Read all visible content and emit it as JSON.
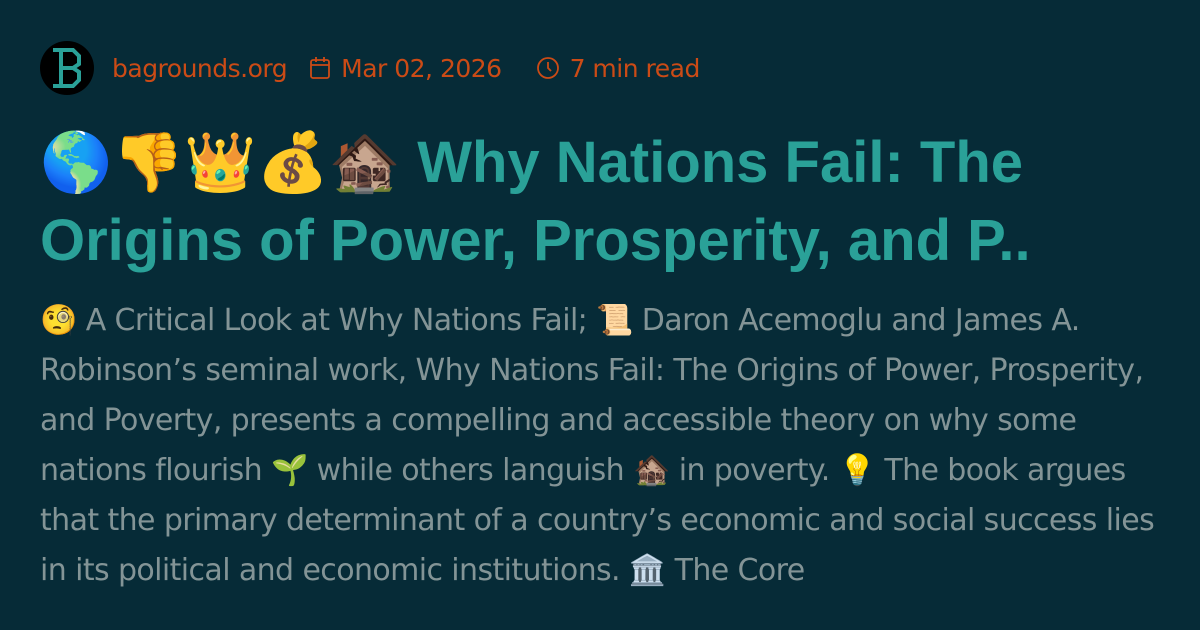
{
  "header": {
    "logo_letter": "B",
    "site": "bagrounds.org",
    "date": "Mar 02, 2026",
    "read_time": "7 min read",
    "icons": [
      "calendar-icon",
      "clock-icon"
    ]
  },
  "title": "🌎👎👑💰🏚️ Why Nations Fail: The Origins of Power, Prosperity, and P..",
  "description": "🧐 A Critical Look at Why Nations Fail; 📜 Daron Acemoglu and James A. Robinson’s seminal work, Why Nations Fail: The Origins of Power, Prosperity, and Poverty, presents a compelling and accessible theory on why some nations flourish 🌱 while others languish 🏚️ in poverty. 💡 The book argues that the primary determinant of a country’s economic and social success lies in its political and economic institutions. 🏛️ The Core",
  "colors": {
    "background": "#062b37",
    "title": "#2aa198",
    "meta": "#cb4b16",
    "text": "#839496",
    "logo": "#2aa198"
  }
}
